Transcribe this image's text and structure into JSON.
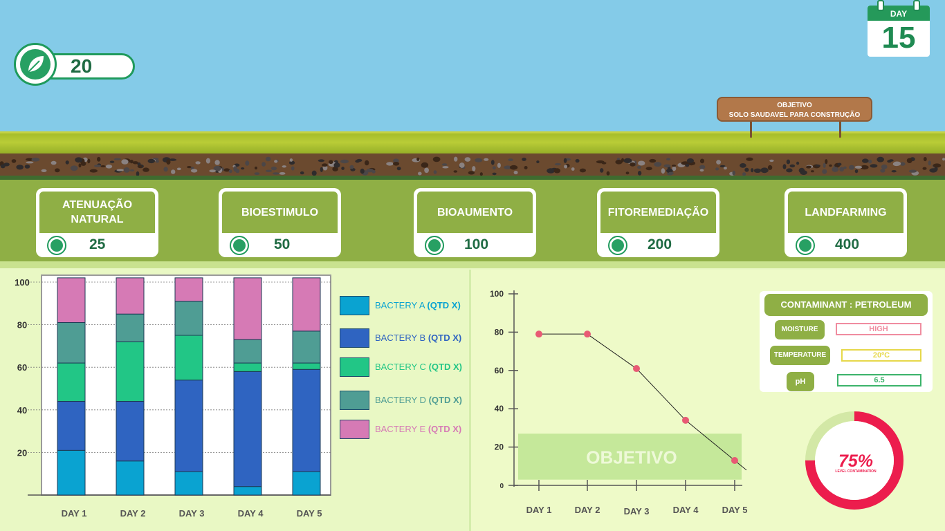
{
  "hud": {
    "score": "20",
    "day_label": "DAY",
    "day_number": "15",
    "score_icon": "leaf-icon"
  },
  "sign": {
    "line1": "OBJETIVO",
    "line2": "SOLO SAUDAVEL PARA CONSTRUÇÃO"
  },
  "methods": [
    {
      "name": "ATENUAÇÃO NATURAL",
      "cost": "25"
    },
    {
      "name": "BIOESTIMULO",
      "cost": "50"
    },
    {
      "name": "BIOAUMENTO",
      "cost": "100"
    },
    {
      "name": "FITOREMEDIAÇÃO",
      "cost": "200"
    },
    {
      "name": "LANDFARMING",
      "cost": "400"
    }
  ],
  "legend": [
    {
      "name": "BACTERY A",
      "qty": "(QTD X)",
      "color": "#0aa3d1"
    },
    {
      "name": "BACTERY B",
      "qty": "(QTD X)",
      "color": "#2f64c1"
    },
    {
      "name": "BACTERY C",
      "qty": "(QTD X)",
      "color": "#22c686"
    },
    {
      "name": "BACTERY D",
      "qty": "(QTD X)",
      "color": "#4f9d94"
    },
    {
      "name": "BACTERY E",
      "qty": "(QTD X)",
      "color": "#d67ab5"
    }
  ],
  "info": {
    "title": "CONTAMINANT : PETROLEUM",
    "moisture_label": "MOISTURE",
    "moisture_value": "HIGH",
    "temperature_label": "TEMPERATURE",
    "temperature_value": "20ºC",
    "ph_label": "pH",
    "ph_value": "6.5"
  },
  "gauge": {
    "value_text": "75%",
    "label": "LEVEL CONTAMINATION",
    "fraction": 0.75
  },
  "objective_label": "OBJETIVO",
  "chart_data": [
    {
      "type": "bar",
      "stacked": true,
      "categories": [
        "DAY 1",
        "DAY 2",
        "DAY 3",
        "DAY 4",
        "DAY 5"
      ],
      "ylim": [
        0,
        100
      ],
      "yticks": [
        20,
        40,
        60,
        80,
        100
      ],
      "grid": true,
      "legend_position": "right",
      "series": [
        {
          "name": "BACTERY A",
          "color": "#0aa3d1",
          "values": [
            21,
            16,
            11,
            4,
            11
          ]
        },
        {
          "name": "BACTERY B",
          "color": "#2f64c1",
          "values": [
            23,
            28,
            43,
            54,
            48
          ]
        },
        {
          "name": "BACTERY C",
          "color": "#22c686",
          "values": [
            18,
            28,
            21,
            4,
            3
          ]
        },
        {
          "name": "BACTERY D",
          "color": "#4f9d94",
          "values": [
            19,
            13,
            16,
            11,
            15
          ]
        },
        {
          "name": "BACTERY E",
          "color": "#d67ab5",
          "values": [
            21,
            17,
            11,
            29,
            25
          ]
        }
      ]
    },
    {
      "type": "line",
      "categories": [
        "DAY 1",
        "DAY 2",
        "DAY 3",
        "DAY 4",
        "DAY 5"
      ],
      "values": [
        79,
        79,
        61,
        34,
        13
      ],
      "ylim": [
        0,
        100
      ],
      "yticks": [
        0,
        20,
        40,
        60,
        80,
        100
      ],
      "target_band": [
        3,
        27
      ],
      "color": "#e85a74"
    }
  ]
}
